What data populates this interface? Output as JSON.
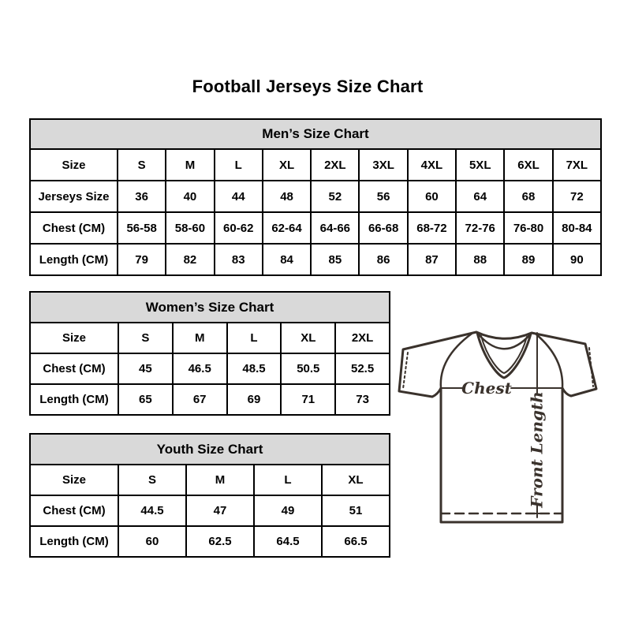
{
  "page": {
    "title": "Football Jerseys Size Chart"
  },
  "tables": [
    {
      "id": "mens",
      "title": "Men’s Size Chart",
      "header_row": [
        "Size",
        "S",
        "M",
        "L",
        "XL",
        "2XL",
        "3XL",
        "4XL",
        "5XL",
        "6XL",
        "7XL"
      ],
      "rows": [
        [
          "Jerseys Size",
          "36",
          "40",
          "44",
          "48",
          "52",
          "56",
          "60",
          "64",
          "68",
          "72"
        ],
        [
          "Chest (CM)",
          "56-58",
          "58-60",
          "60-62",
          "62-64",
          "64-66",
          "66-68",
          "68-72",
          "72-76",
          "76-80",
          "80-84"
        ],
        [
          "Length (CM)",
          "79",
          "82",
          "83",
          "84",
          "85",
          "86",
          "87",
          "88",
          "89",
          "90"
        ]
      ]
    },
    {
      "id": "womens",
      "title": "Women’s Size Chart",
      "header_row": [
        "Size",
        "S",
        "M",
        "L",
        "XL",
        "2XL"
      ],
      "rows": [
        [
          "Chest (CM)",
          "45",
          "46.5",
          "48.5",
          "50.5",
          "52.5"
        ],
        [
          "Length (CM)",
          "65",
          "67",
          "69",
          "71",
          "73"
        ]
      ]
    },
    {
      "id": "youth",
      "title": "Youth Size Chart",
      "header_row": [
        "Size",
        "S",
        "M",
        "L",
        "XL"
      ],
      "rows": [
        [
          "Chest (CM)",
          "44.5",
          "47",
          "49",
          "51"
        ],
        [
          "Length (CM)",
          "60",
          "62.5",
          "64.5",
          "66.5"
        ]
      ]
    }
  ],
  "diagram": {
    "chest_label": "Chest",
    "front_length_label": "Front Length"
  },
  "colors": {
    "table_title_bg": "#d9d9d9",
    "table_border": "#000000",
    "diagram_line": "#3a322c"
  }
}
